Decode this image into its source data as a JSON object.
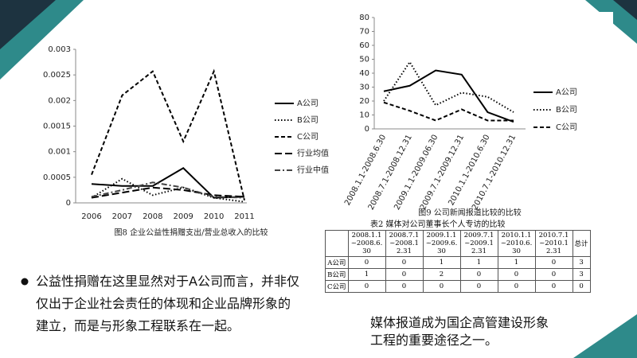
{
  "chart_data": [
    {
      "type": "line",
      "title": "图8  企业公益性捐赠支出/营业总收入的比较",
      "categories": [
        "2006",
        "2007",
        "2008",
        "2009",
        "2010",
        "2011"
      ],
      "ylim": [
        0,
        0.003
      ],
      "yticks": [
        0,
        0.0005,
        0.001,
        0.0015,
        0.002,
        0.0025,
        0.003
      ],
      "series": [
        {
          "name": "A公司",
          "color": "#000000",
          "dash": "solid",
          "values": [
            0.00037,
            0.00033,
            0.00033,
            0.00068,
            0.0001,
            0.00012
          ]
        },
        {
          "name": "B公司",
          "color": "#000000",
          "dash": "dotted",
          "values": [
            0.0001,
            0.00047,
            0.00015,
            0.0003,
            0.0001,
            2e-05
          ]
        },
        {
          "name": "C公司",
          "color": "#000000",
          "dash": "dashed",
          "values": [
            0.00055,
            0.0021,
            0.00257,
            0.0012,
            0.00257,
            5e-05
          ]
        },
        {
          "name": "行业均值",
          "color": "#000000",
          "dash": "longdash",
          "values": [
            0.0001,
            0.0002,
            0.0003,
            0.00025,
            0.00015,
            0.00012
          ]
        },
        {
          "name": "行业中值",
          "color": "#444444",
          "dash": "dashdot",
          "values": [
            0.00012,
            0.00025,
            0.0004,
            0.0003,
            0.00012,
            0.0001
          ]
        }
      ]
    },
    {
      "type": "line",
      "title": "图9  公司新闻报道比较的比较",
      "categories": [
        "2008.1.1-2008.6.30",
        "2008.7.1-2008.12.31",
        "2009.1.1-2009.06.30",
        "2009.7.1-2009.12.31",
        "2010.1.1-2010.6.30",
        "2010.7.1-2010.12.31"
      ],
      "ylim": [
        0,
        80
      ],
      "yticks": [
        0,
        10,
        20,
        30,
        40,
        50,
        60,
        70,
        80
      ],
      "series": [
        {
          "name": "A公司",
          "color": "#000000",
          "dash": "solid",
          "values": [
            27,
            31,
            42,
            39,
            12,
            5
          ]
        },
        {
          "name": "B公司",
          "color": "#000000",
          "dash": "dotted",
          "values": [
            20,
            48,
            17,
            26,
            23,
            12
          ]
        },
        {
          "name": "C公司",
          "color": "#000000",
          "dash": "dashed",
          "values": [
            19,
            13,
            6,
            14,
            6,
            6
          ]
        }
      ]
    }
  ],
  "table": {
    "caption": "表2  媒体对公司董事长个人专访的比较",
    "header": [
      "2008.1.1~2008.6.30",
      "2008.7.1~2008.12.31",
      "2009.1.1~2009.6.30",
      "2009.7.1~2009.12.31",
      "2010.1.1~2010.6.30",
      "2010.7.1~2010.12.31",
      "总计"
    ],
    "rows": [
      [
        "A公司",
        0,
        0,
        1,
        1,
        1,
        0,
        3
      ],
      [
        "B公司",
        1,
        0,
        2,
        0,
        0,
        0,
        3
      ],
      [
        "C公司",
        0,
        0,
        0,
        0,
        0,
        0,
        0
      ]
    ]
  },
  "bullet": "公益性捐赠在这里显然对于A公司而言，并非仅仅出于企业社会责任的体现和企业品牌形象的建立，而是与形象工程联系在一起。",
  "caption": "媒体报道成为国企高管建设形象工程的重要途径之一。"
}
